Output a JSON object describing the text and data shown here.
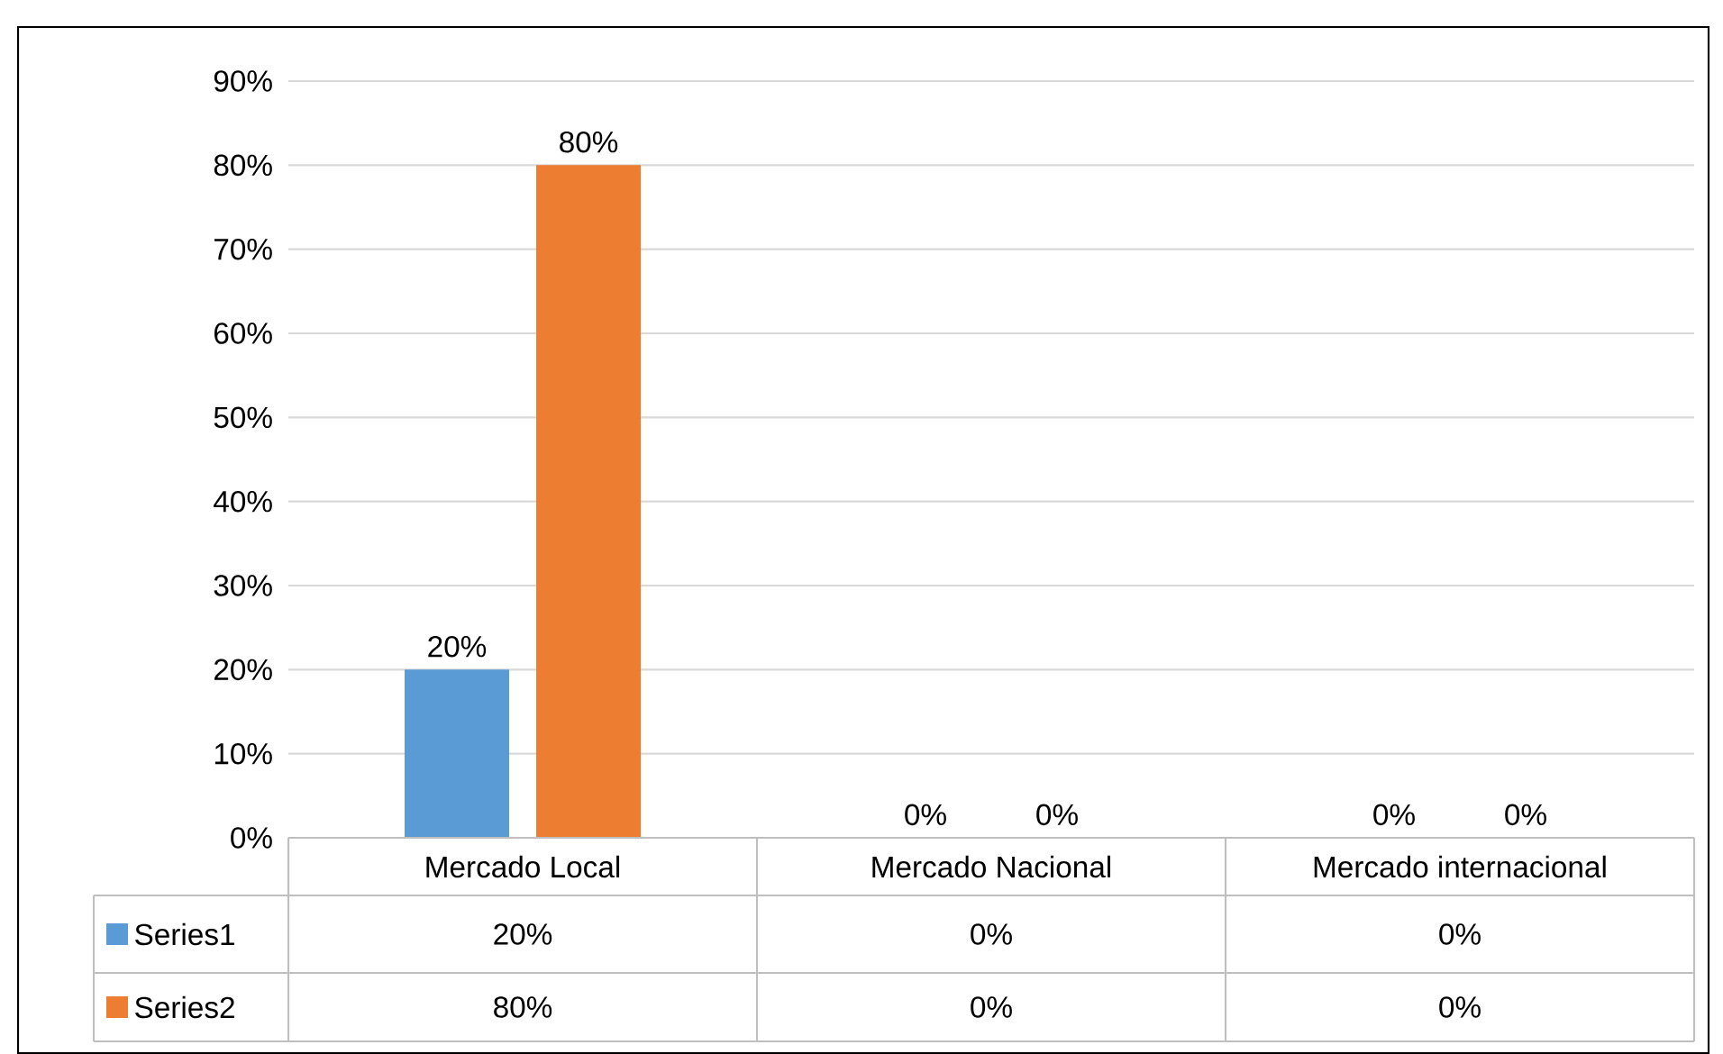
{
  "chart_data": {
    "type": "bar",
    "categories": [
      "Mercado Local",
      "Mercado Nacional",
      "Mercado internacional"
    ],
    "series": [
      {
        "name": "Series1",
        "color": "#5b9bd5",
        "values": [
          20,
          0,
          0
        ],
        "value_labels": [
          "20%",
          "0%",
          "0%"
        ]
      },
      {
        "name": "Series2",
        "color": "#ed7d31",
        "values": [
          80,
          0,
          0
        ],
        "value_labels": [
          "80%",
          "0%",
          "0%"
        ]
      }
    ],
    "ylim": [
      0,
      90
    ],
    "yticks": [
      {
        "value": 0,
        "label": "0%"
      },
      {
        "value": 10,
        "label": "10%"
      },
      {
        "value": 20,
        "label": "20%"
      },
      {
        "value": 30,
        "label": "30%"
      },
      {
        "value": 40,
        "label": "40%"
      },
      {
        "value": 50,
        "label": "50%"
      },
      {
        "value": 60,
        "label": "60%"
      },
      {
        "value": 70,
        "label": "70%"
      },
      {
        "value": 80,
        "label": "80%"
      },
      {
        "value": 90,
        "label": "90%"
      }
    ],
    "grid": "y",
    "legend": "bottom"
  }
}
